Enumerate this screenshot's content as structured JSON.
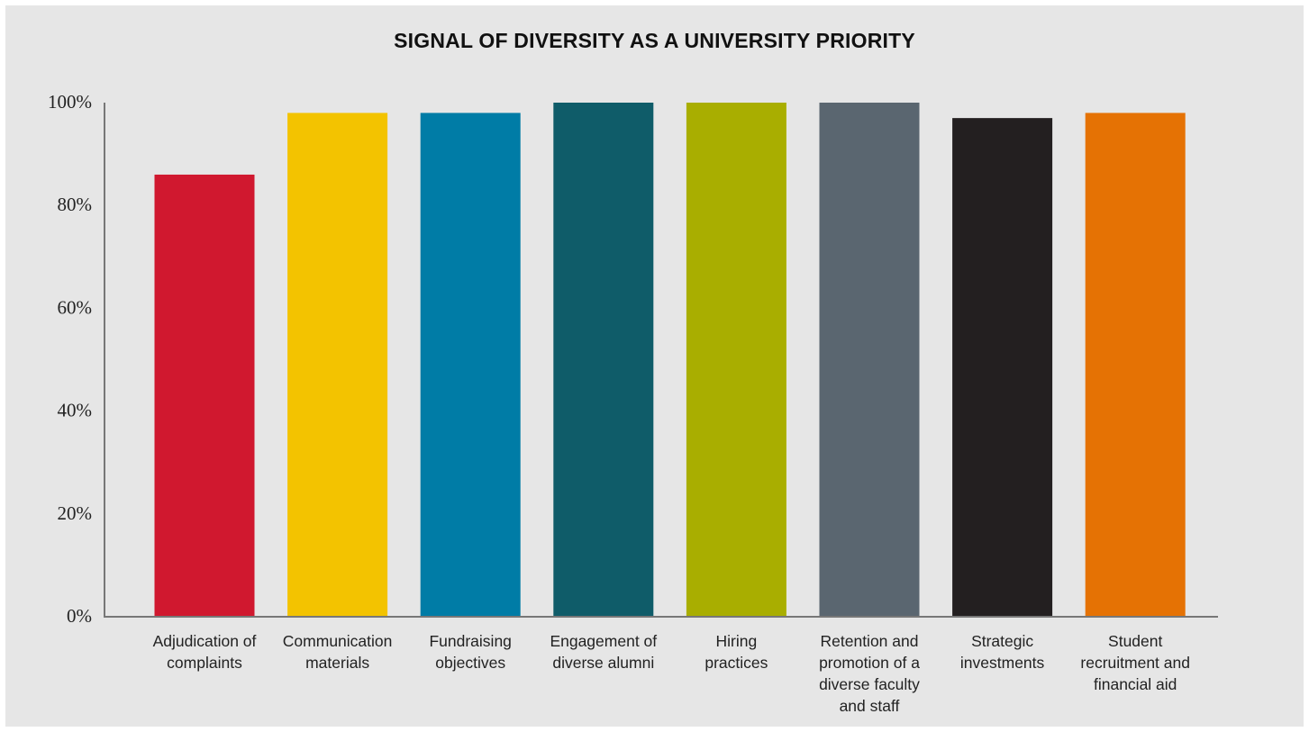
{
  "chart_data": {
    "type": "bar",
    "title": "SIGNAL OF DIVERSITY AS A UNIVERSITY PRIORITY",
    "xlabel": "",
    "ylabel": "",
    "ylim": [
      0,
      100
    ],
    "yticks": [
      0,
      20,
      40,
      60,
      80,
      100
    ],
    "ytick_labels": [
      "0%",
      "20%",
      "40%",
      "60%",
      "80%",
      "100%"
    ],
    "grid": false,
    "legend": "none",
    "categories": [
      "Adjudication of complaints",
      "Communication materials",
      "Fundraising objectives",
      "Engagement of diverse alumni",
      "Hiring practices",
      "Retention and promotion of a diverse faculty and staff",
      "Strategic investments",
      "Student recruitment and financial aid"
    ],
    "category_label_lines": [
      [
        "Adjudication of",
        "complaints"
      ],
      [
        "Communication",
        "materials"
      ],
      [
        "Fundraising",
        "objectives"
      ],
      [
        "Engagement of",
        "diverse alumni"
      ],
      [
        "Hiring",
        "practices"
      ],
      [
        "Retention and",
        "promotion of a",
        "diverse faculty",
        "and staff"
      ],
      [
        "Strategic",
        "investments"
      ],
      [
        "Student",
        "recruitment and",
        "financial aid"
      ]
    ],
    "values": [
      86,
      98,
      98,
      100,
      100,
      100,
      97,
      98
    ],
    "colors": [
      "#d0182f",
      "#f3c300",
      "#007ca6",
      "#0f5c69",
      "#a9ae00",
      "#5a6670",
      "#231f20",
      "#e57204"
    ],
    "axis_color": "#777777",
    "background_color": "#e6e6e6"
  }
}
